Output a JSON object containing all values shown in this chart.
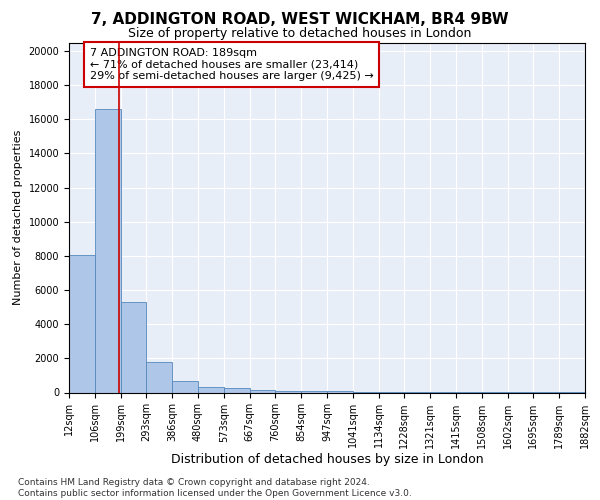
{
  "title": "7, ADDINGTON ROAD, WEST WICKHAM, BR4 9BW",
  "subtitle": "Size of property relative to detached houses in London",
  "xlabel": "Distribution of detached houses by size in London",
  "ylabel": "Number of detached properties",
  "bar_values": [
    8050,
    16600,
    5300,
    1800,
    650,
    350,
    250,
    150,
    100,
    75,
    60,
    45,
    35,
    28,
    22,
    17,
    13,
    10,
    8,
    5
  ],
  "xtick_labels": [
    "12sqm",
    "106sqm",
    "199sqm",
    "293sqm",
    "386sqm",
    "480sqm",
    "573sqm",
    "667sqm",
    "760sqm",
    "854sqm",
    "947sqm",
    "1041sqm",
    "1134sqm",
    "1228sqm",
    "1321sqm",
    "1415sqm",
    "1508sqm",
    "1602sqm",
    "1695sqm",
    "1789sqm",
    "1882sqm"
  ],
  "bar_color": "#aec6e8",
  "bar_edge_color": "#5588bb",
  "vline_x": 1.93,
  "vline_color": "#cc0000",
  "annotation_text": "7 ADDINGTON ROAD: 189sqm\n← 71% of detached houses are smaller (23,414)\n29% of semi-detached houses are larger (9,425) →",
  "annotation_box_color": "#cc0000",
  "ylim": [
    0,
    20500
  ],
  "yticks": [
    0,
    2000,
    4000,
    6000,
    8000,
    10000,
    12000,
    14000,
    16000,
    18000,
    20000
  ],
  "bg_color": "#e8eef8",
  "footer_text": "Contains HM Land Registry data © Crown copyright and database right 2024.\nContains public sector information licensed under the Open Government Licence v3.0.",
  "title_fontsize": 11,
  "subtitle_fontsize": 9,
  "xlabel_fontsize": 9,
  "ylabel_fontsize": 8,
  "tick_fontsize": 7,
  "annotation_fontsize": 8,
  "footer_fontsize": 6.5
}
